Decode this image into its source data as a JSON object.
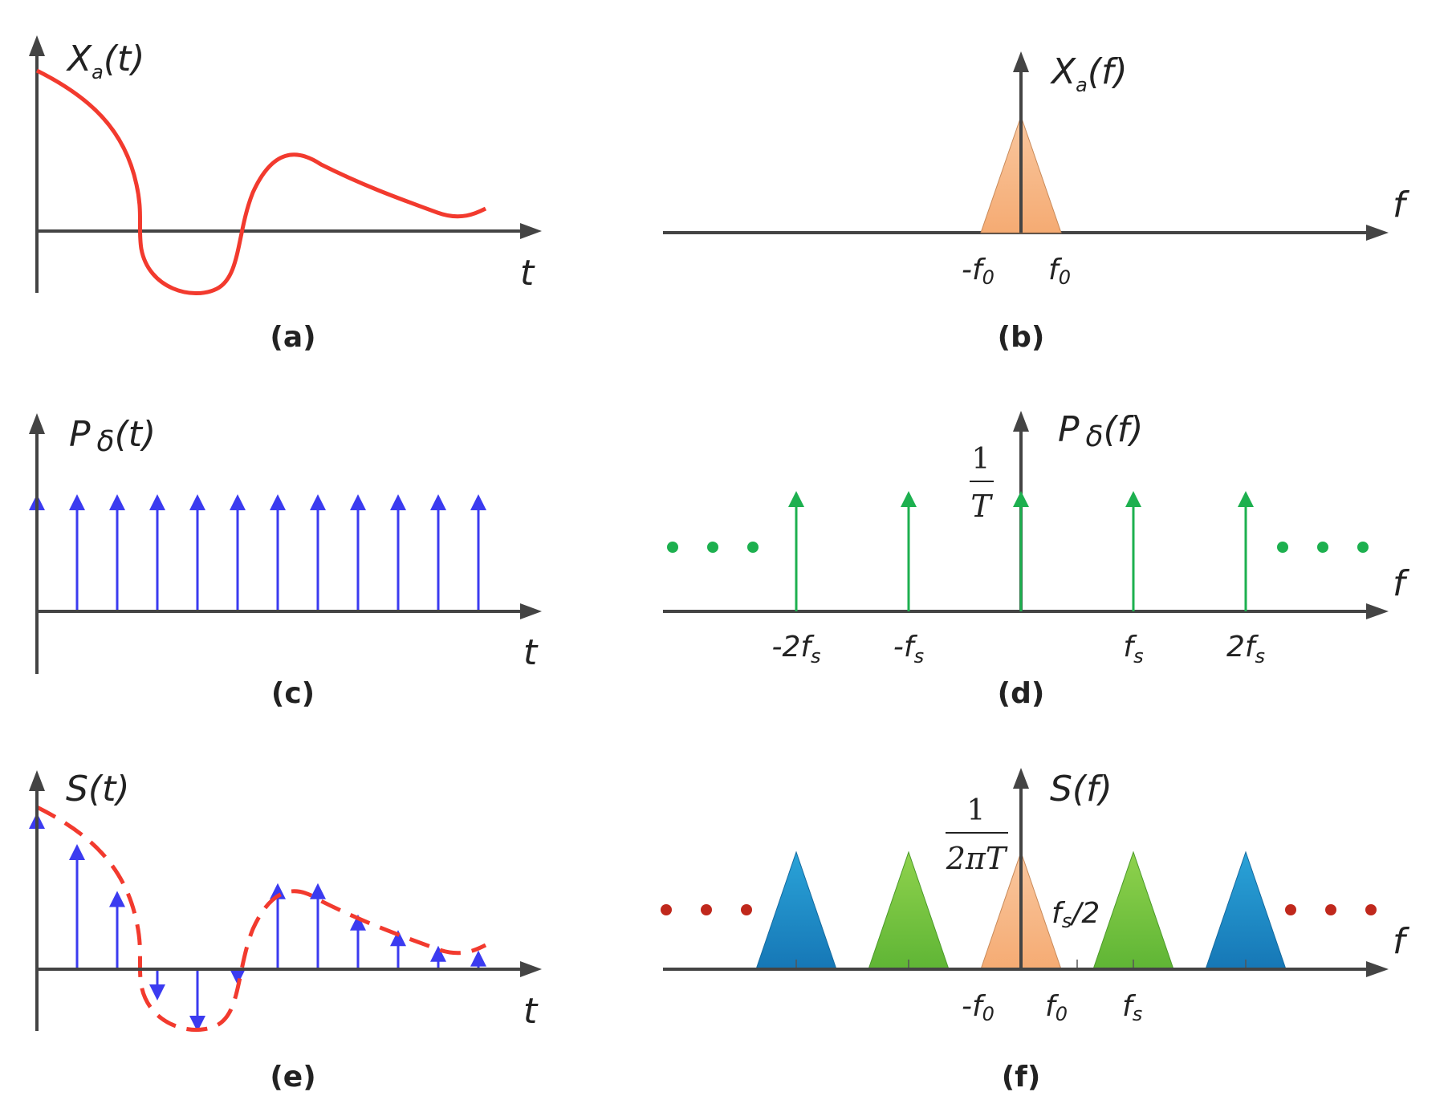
{
  "colors": {
    "signal": "#f23a2e",
    "impulse_time": "#3b3bf0",
    "impulse_freq": "#1db04f",
    "dots_d": "#1db04f",
    "dots_f": "#c0281c",
    "tri_orange": "#f8b98a",
    "tri_green": "#7ac943",
    "tri_blue": "#1e95cf",
    "axis": "#444444"
  },
  "panels": {
    "a": {
      "ylabel_base": "X",
      "ylabel_sub": "a",
      "ylabel_tail": "(t)",
      "xlabel": "t",
      "caption": "(a)"
    },
    "b": {
      "ylabel_base": "X",
      "ylabel_sub": "a",
      "ylabel_tail": "(f)",
      "xlabel": "f",
      "caption": "(b)",
      "tick_neg_f0": "-f",
      "tick_f0": "f",
      "tick_sub": "0"
    },
    "c": {
      "ylabel_base": "P",
      "ylabel_delta": "δ",
      "ylabel_tail": "(t)",
      "xlabel": "t",
      "caption": "(c)",
      "impulse_count": 12
    },
    "d": {
      "ylabel_base": "P",
      "ylabel_delta": "δ",
      "ylabel_tail": "(f)",
      "xlabel": "f",
      "caption": "(d)",
      "frac_num": "1",
      "frac_den": "T",
      "ticks": [
        {
          "pre": "-2f",
          "sub": "s"
        },
        {
          "pre": "-f",
          "sub": "s"
        },
        {
          "pre": "f",
          "sub": "s"
        },
        {
          "pre": "2f",
          "sub": "s"
        }
      ]
    },
    "e": {
      "ylabel": "S(t)",
      "xlabel": "t",
      "caption": "(e)",
      "samples": [
        1.0,
        0.8,
        0.5,
        -0.2,
        -0.4,
        -0.1,
        0.55,
        0.55,
        0.35,
        0.25,
        0.15,
        0.12
      ]
    },
    "f": {
      "ylabel": "S(f)",
      "xlabel": "f",
      "caption": "(f)",
      "frac_num": "1",
      "frac_den": "2πT",
      "half_label_pre": "f",
      "half_label_sub": "s",
      "half_label_post": "/2",
      "tick_neg_f0": "-f",
      "tick_f0": "f",
      "tick_fs": "f",
      "tick_sub0": "0",
      "tick_subs": "s"
    }
  }
}
